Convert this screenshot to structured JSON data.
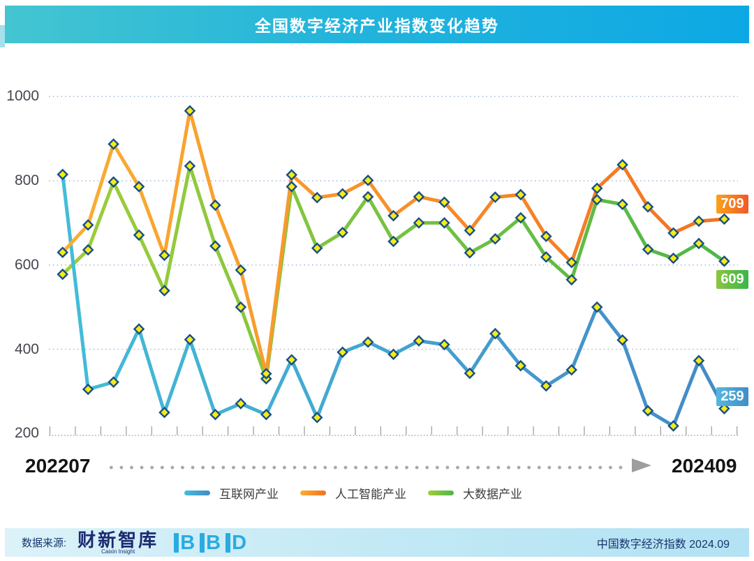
{
  "title": "全国数字经济产业指数变化趋势",
  "y_axis": {
    "ticks": [
      1000,
      800,
      600,
      400,
      200
    ]
  },
  "x_axis": {
    "start_label": "202207",
    "end_label": "202409"
  },
  "chart_data": {
    "type": "line",
    "title": "全国数字经济产业指数变化趋势",
    "x": [
      "202207",
      "202208",
      "202209",
      "202210",
      "202211",
      "202212",
      "202301",
      "202302",
      "202303",
      "202304",
      "202305",
      "202306",
      "202307",
      "202308",
      "202309",
      "202310",
      "202311",
      "202312",
      "202401",
      "202402",
      "202403",
      "202404",
      "202405",
      "202406",
      "202407",
      "202408",
      "202409"
    ],
    "ylim": [
      200,
      1000
    ],
    "grid": "horizontal-dotted",
    "legend_position": "bottom",
    "marker": {
      "shape": "diamond",
      "fill": "#F6EB16",
      "stroke": "#184F87"
    },
    "series": [
      {
        "name": "互联网产业",
        "color_start": "#42BED8",
        "color_end": "#4489C6",
        "end_label": "259",
        "badge_colors": [
          "#56B7E0",
          "#3E8FC7"
        ],
        "values": [
          815,
          305,
          322,
          448,
          250,
          423,
          245,
          271,
          245,
          375,
          238,
          393,
          417,
          388,
          420,
          411,
          343,
          437,
          361,
          313,
          351,
          500,
          422,
          254,
          218,
          373,
          259
        ]
      },
      {
        "name": "人工智能产业",
        "color_start": "#F9B033",
        "color_end": "#F37021",
        "end_label": "709",
        "badge_colors": [
          "#F9A21B",
          "#F1592A"
        ],
        "values": [
          630,
          695,
          887,
          786,
          623,
          966,
          742,
          588,
          342,
          814,
          760,
          769,
          801,
          717,
          762,
          749,
          682,
          761,
          767,
          668,
          606,
          782,
          838,
          738,
          676,
          704,
          709
        ]
      },
      {
        "name": "大数据产业",
        "color_start": "#A2CE39",
        "color_end": "#4CB648",
        "end_label": "609",
        "badge_colors": [
          "#8CC63F",
          "#39B54A"
        ],
        "values": [
          578,
          636,
          797,
          671,
          539,
          835,
          645,
          500,
          330,
          786,
          640,
          677,
          762,
          656,
          700,
          700,
          629,
          662,
          712,
          619,
          565,
          755,
          744,
          637,
          616,
          651,
          609
        ]
      }
    ]
  },
  "footer": {
    "source_label": "数据来源:",
    "source_name": "财新智库",
    "source_subtitle": "Caixin Insight",
    "bbd_letters": [
      "B",
      "B",
      "D"
    ],
    "right_text": "中国数字经济指数 2024.09"
  }
}
